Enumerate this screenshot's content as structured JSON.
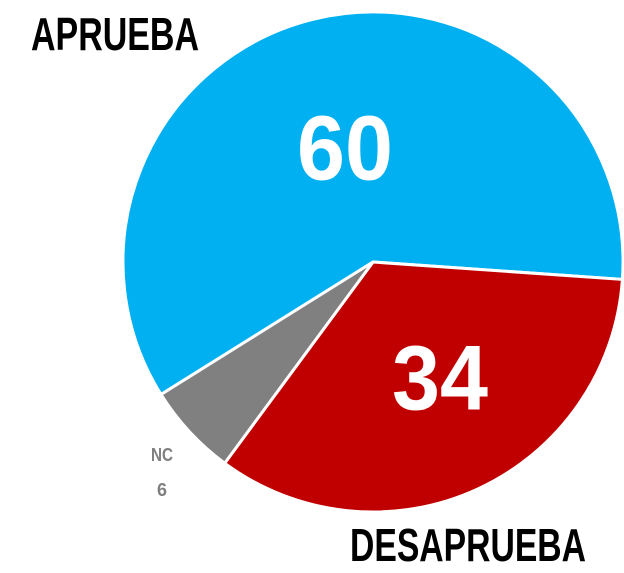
{
  "chart_data": {
    "type": "pie",
    "categories": [
      "APRUEBA",
      "DESAPRUEBA",
      "NC"
    ],
    "values": [
      60,
      34,
      6
    ],
    "colors": [
      "#00b0f0",
      "#c00000",
      "#808080"
    ]
  }
}
